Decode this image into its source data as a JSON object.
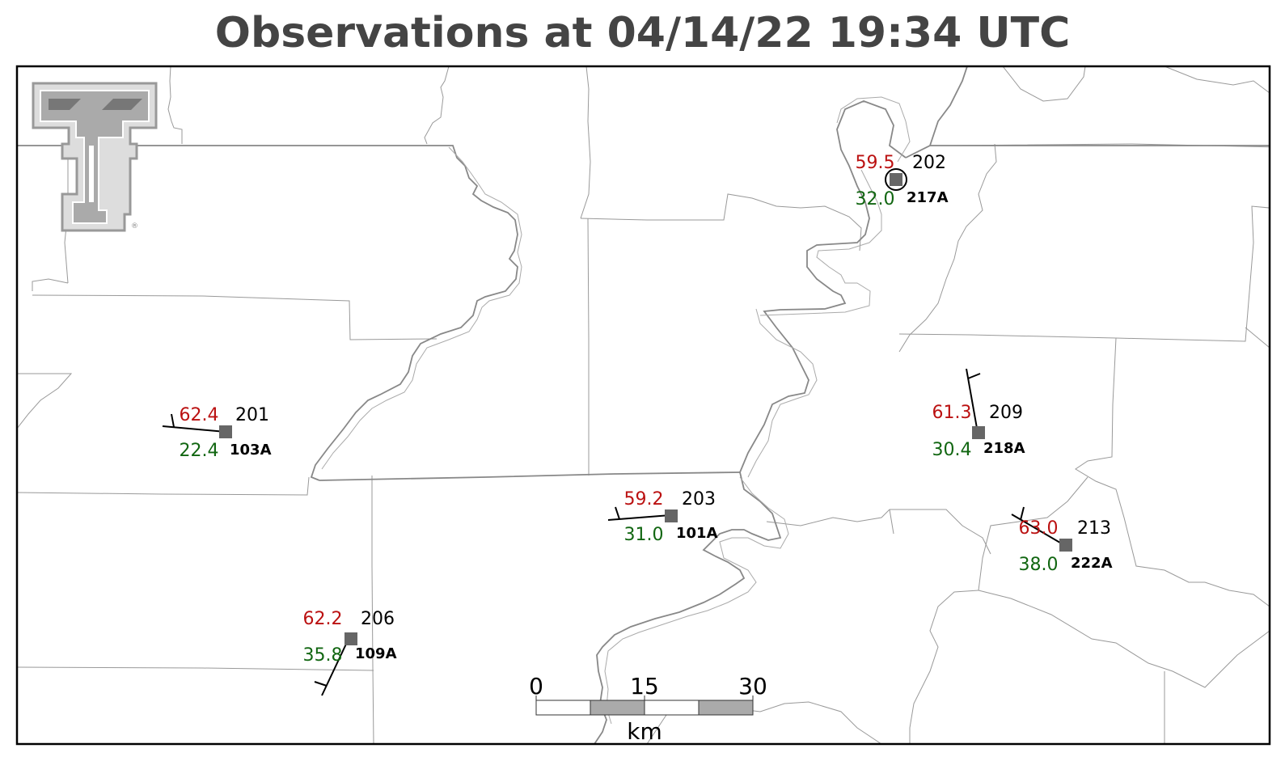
{
  "title": "Observations at 04/14/22 19:34 UTC",
  "colors": {
    "temperature": "#bb1111",
    "dewpoint": "#116611",
    "station_marker": "#666666",
    "boundaries": "#999999",
    "river": "#888888"
  },
  "logo": {
    "name": "texas-tech-double-t-logo",
    "mark": "®"
  },
  "stations": [
    {
      "id": "103A",
      "temperature": "62.4",
      "dewpoint": "22.4",
      "wind_direction": "201",
      "calm": false
    },
    {
      "id": "217A",
      "temperature": "59.5",
      "dewpoint": "32.0",
      "wind_direction": "202",
      "calm": true
    },
    {
      "id": "101A",
      "temperature": "59.2",
      "dewpoint": "31.0",
      "wind_direction": "203",
      "calm": false
    },
    {
      "id": "218A",
      "temperature": "61.3",
      "dewpoint": "30.4",
      "wind_direction": "209",
      "calm": false
    },
    {
      "id": "222A",
      "temperature": "63.0",
      "dewpoint": "38.0",
      "wind_direction": "213",
      "calm": false
    },
    {
      "id": "109A",
      "temperature": "62.2",
      "dewpoint": "35.8",
      "wind_direction": "206",
      "calm": false
    }
  ],
  "scale_bar": {
    "labels": [
      "0",
      "15",
      "30"
    ],
    "unit": "km"
  }
}
